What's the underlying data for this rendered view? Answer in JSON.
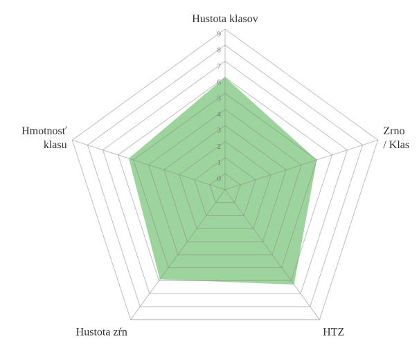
{
  "chart_data": {
    "type": "radar",
    "categories": [
      "Hustota klasov",
      "Zrno\n/ Klas",
      "HTZ",
      "Hustota zŕn",
      "Hmotnosť\nklasu"
    ],
    "values": [
      6,
      5,
      6.3,
      5.9,
      5.3
    ],
    "color": "#5cb85c",
    "ylim": [
      -1,
      9
    ],
    "yticks": [
      0,
      1,
      2,
      3,
      4,
      5,
      6,
      7,
      8,
      9
    ],
    "grid": true
  }
}
